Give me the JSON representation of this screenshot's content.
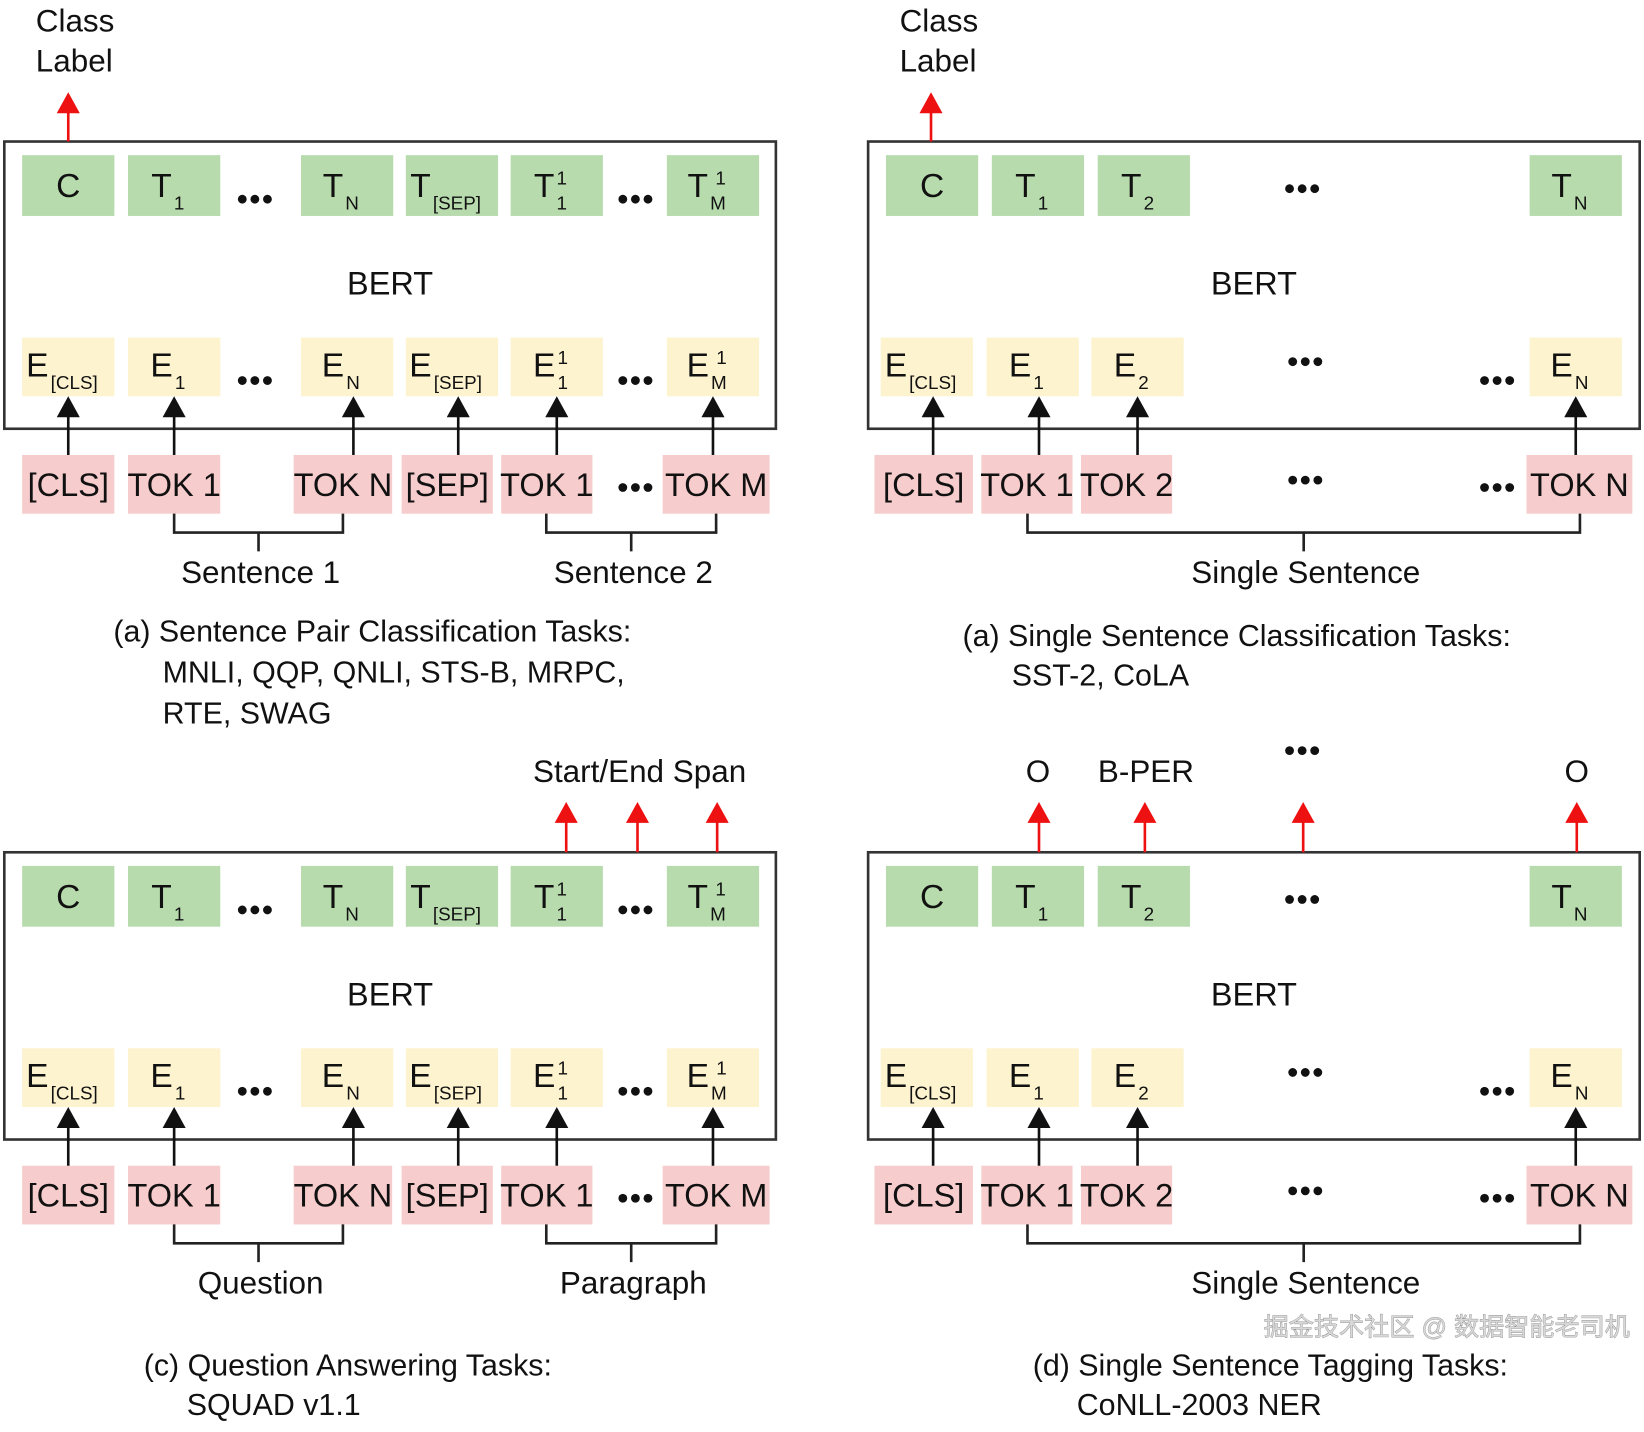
{
  "colors": {
    "output_box": "#b8dbae",
    "embedding_box": "#fdf3cf",
    "input_box": "#f6cccc",
    "task_arrow": "#ee1111",
    "flow_arrow": "#111111",
    "frame": "#333333"
  },
  "watermark": "掘金技术社区 @ 数据智能老司机",
  "panels": [
    {
      "id": "a",
      "output_label": [
        "Class",
        "Label"
      ],
      "model_label": "BERT",
      "outputs": [
        {
          "m": "C"
        },
        {
          "m": "T",
          "sub": "1"
        },
        {
          "dots": true
        },
        {
          "m": "T",
          "sub": "N"
        },
        {
          "m": "T",
          "sub": "[SEP]"
        },
        {
          "m": "T",
          "sub": "1",
          "sup": "1"
        },
        {
          "dots": true
        },
        {
          "m": "T",
          "sub": "M",
          "sup": "1"
        }
      ],
      "embeddings": [
        {
          "m": "E",
          "sub": "[CLS]"
        },
        {
          "m": "E",
          "sub": "1"
        },
        {
          "dots": true
        },
        {
          "m": "E",
          "sub": "N"
        },
        {
          "m": "E",
          "sub": "[SEP]"
        },
        {
          "m": "E",
          "sub": "1",
          "sup": "1"
        },
        {
          "dots": true
        },
        {
          "m": "E",
          "sub": "M",
          "sup": "1"
        }
      ],
      "inputs": [
        {
          "m": "[CLS]"
        },
        {
          "m": "TOK 1"
        },
        {
          "m": "TOK N"
        },
        {
          "m": "[SEP]"
        },
        {
          "m": "TOK 1"
        },
        {
          "dots": true
        },
        {
          "m": "TOK M"
        }
      ],
      "groups": [
        "Sentence 1",
        "Sentence 2"
      ],
      "caption": [
        "(a) Sentence Pair Classification Tasks:",
        "MNLI, QQP, QNLI, STS-B, MRPC,",
        "RTE, SWAG"
      ]
    },
    {
      "id": "b",
      "output_label": [
        "Class",
        "Label"
      ],
      "model_label": "BERT",
      "outputs": [
        {
          "m": "C"
        },
        {
          "m": "T",
          "sub": "1"
        },
        {
          "m": "T",
          "sub": "2"
        },
        {
          "dots": true
        },
        {
          "m": "T",
          "sub": "N"
        }
      ],
      "embeddings": [
        {
          "m": "E",
          "sub": "[CLS]"
        },
        {
          "m": "E",
          "sub": "1"
        },
        {
          "m": "E",
          "sub": "2"
        },
        {
          "dots": true
        },
        {
          "dots": true
        },
        {
          "m": "E",
          "sub": "N"
        }
      ],
      "inputs": [
        {
          "m": "[CLS]"
        },
        {
          "m": "TOK 1"
        },
        {
          "m": "TOK 2"
        },
        {
          "dots": true
        },
        {
          "dots": true
        },
        {
          "m": "TOK N"
        }
      ],
      "groups": [
        "Single Sentence"
      ],
      "caption": [
        "(a) Single Sentence Classification Tasks:",
        "SST-2, CoLA"
      ]
    },
    {
      "id": "c",
      "output_label": [
        "Start/End Span"
      ],
      "model_label": "BERT",
      "outputs": [
        {
          "m": "C"
        },
        {
          "m": "T",
          "sub": "1"
        },
        {
          "dots": true
        },
        {
          "m": "T",
          "sub": "N"
        },
        {
          "m": "T",
          "sub": "[SEP]"
        },
        {
          "m": "T",
          "sub": "1",
          "sup": "1"
        },
        {
          "dots": true
        },
        {
          "m": "T",
          "sub": "M",
          "sup": "1"
        }
      ],
      "embeddings": [
        {
          "m": "E",
          "sub": "[CLS]"
        },
        {
          "m": "E",
          "sub": "1"
        },
        {
          "dots": true
        },
        {
          "m": "E",
          "sub": "N"
        },
        {
          "m": "E",
          "sub": "[SEP]"
        },
        {
          "m": "E",
          "sub": "1",
          "sup": "1"
        },
        {
          "dots": true
        },
        {
          "m": "E",
          "sub": "M",
          "sup": "1"
        }
      ],
      "inputs": [
        {
          "m": "[CLS]"
        },
        {
          "m": "TOK 1"
        },
        {
          "m": "TOK N"
        },
        {
          "m": "[SEP]"
        },
        {
          "m": "TOK 1"
        },
        {
          "dots": true
        },
        {
          "m": "TOK M"
        }
      ],
      "groups": [
        "Question",
        "Paragraph"
      ],
      "caption": [
        "(c) Question Answering Tasks:",
        "SQUAD v1.1"
      ]
    },
    {
      "id": "d",
      "output_label": [
        "O",
        "B-PER",
        "...",
        "O"
      ],
      "model_label": "BERT",
      "outputs": [
        {
          "m": "C"
        },
        {
          "m": "T",
          "sub": "1"
        },
        {
          "m": "T",
          "sub": "2"
        },
        {
          "dots": true
        },
        {
          "m": "T",
          "sub": "N"
        }
      ],
      "embeddings": [
        {
          "m": "E",
          "sub": "[CLS]"
        },
        {
          "m": "E",
          "sub": "1"
        },
        {
          "m": "E",
          "sub": "2"
        },
        {
          "dots": true
        },
        {
          "dots": true
        },
        {
          "m": "E",
          "sub": "N"
        }
      ],
      "inputs": [
        {
          "m": "[CLS]"
        },
        {
          "m": "TOK 1"
        },
        {
          "m": "TOK 2"
        },
        {
          "dots": true
        },
        {
          "dots": true
        },
        {
          "m": "TOK N"
        }
      ],
      "groups": [
        "Single Sentence"
      ],
      "caption": [
        "(d) Single Sentence Tagging Tasks:",
        "CoNLL-2003 NER"
      ]
    }
  ]
}
